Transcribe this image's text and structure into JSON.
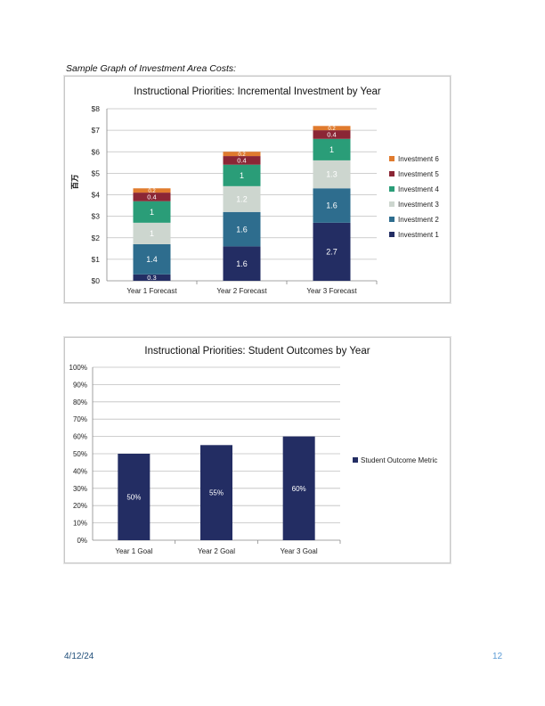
{
  "caption": "Sample Graph of Investment Area Costs:",
  "footer": {
    "date": "4/12/24",
    "page": "12"
  },
  "chart_data": [
    {
      "type": "bar",
      "stacked": true,
      "title": "Instructional Priorities: Incremental Investment by Year",
      "ylabel": "百万",
      "categories": [
        "Year 1 Forecast",
        "Year 2 Forecast",
        "Year 3 Forecast"
      ],
      "ylim": [
        0,
        8
      ],
      "yticks": [
        "$0",
        "$1",
        "$2",
        "$3",
        "$4",
        "$5",
        "$6",
        "$7",
        "$8"
      ],
      "grid": true,
      "legend_position": "right",
      "series": [
        {
          "name": "Investment 1",
          "color": "#232d63",
          "values": [
            0.3,
            1.6,
            2.7
          ]
        },
        {
          "name": "Investment 2",
          "color": "#2e6d8e",
          "values": [
            1.4,
            1.6,
            1.6
          ]
        },
        {
          "name": "Investment 3",
          "color": "#cdd6cf",
          "values": [
            1,
            1.2,
            1.3
          ]
        },
        {
          "name": "Investment 4",
          "color": "#2a9d78",
          "values": [
            1,
            1,
            1
          ]
        },
        {
          "name": "Investment 5",
          "color": "#8b2635",
          "values": [
            0.4,
            0.4,
            0.4
          ]
        },
        {
          "name": "Investment 6",
          "color": "#e07b2e",
          "values": [
            0.2,
            0.2,
            0.2
          ]
        }
      ],
      "data_labels": [
        [
          "0.3",
          "1.4",
          "1",
          "1",
          "0.4",
          "0.2"
        ],
        [
          "1.6",
          "1.6",
          "1.2",
          "1",
          "0.4",
          "0.2"
        ],
        [
          "2.7",
          "1.6",
          "1.3",
          "1",
          "0.4",
          "0.2"
        ]
      ]
    },
    {
      "type": "bar",
      "title": "Instructional Priorities: Student Outcomes by Year",
      "categories": [
        "Year 1 Goal",
        "Year 2 Goal",
        "Year 3 Goal"
      ],
      "ylim": [
        0,
        100
      ],
      "yticks": [
        "0%",
        "10%",
        "20%",
        "30%",
        "40%",
        "50%",
        "60%",
        "70%",
        "80%",
        "90%",
        "100%"
      ],
      "grid": true,
      "legend_position": "right",
      "series": [
        {
          "name": "Student Outcome Metric",
          "color": "#232d63",
          "values": [
            50,
            55,
            60
          ]
        }
      ],
      "data_labels": [
        "50%",
        "55%",
        "60%"
      ]
    }
  ]
}
